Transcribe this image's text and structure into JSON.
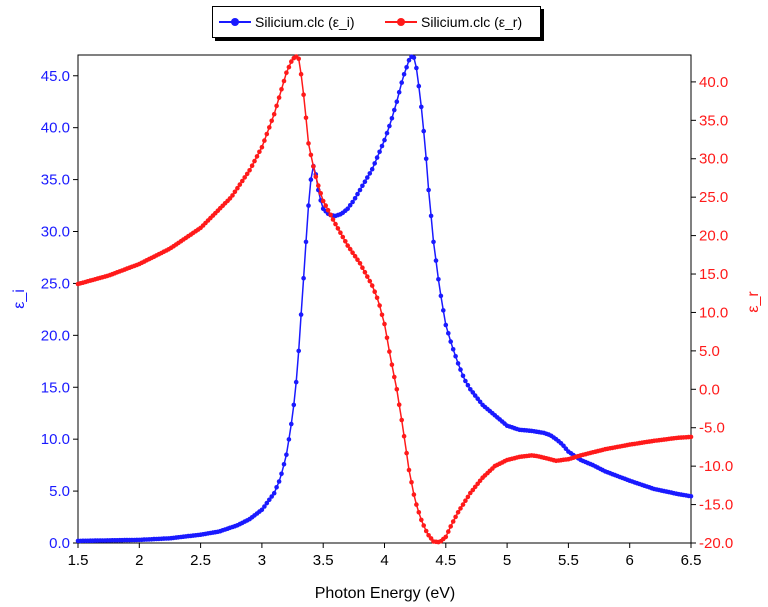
{
  "chart_data": {
    "type": "line",
    "title": "",
    "xlabel": "Photon Energy (eV)",
    "ylabel_left": "ε_i",
    "ylabel_right": "ε_r",
    "xlim": [
      1.5,
      6.5
    ],
    "ylim_left": [
      0,
      47
    ],
    "ylim_right": [
      -20,
      43.5
    ],
    "x_ticks": [
      "1.5",
      "2",
      "2.5",
      "3",
      "3.5",
      "4",
      "4.5",
      "5",
      "5.5",
      "6",
      "6.5"
    ],
    "y_left_ticks": [
      "0.0",
      "5.0",
      "10.0",
      "15.0",
      "20.0",
      "25.0",
      "30.0",
      "35.0",
      "40.0",
      "45.0"
    ],
    "y_right_ticks": [
      "-20.0",
      "-15.0",
      "-10.0",
      "-5.0",
      "0.0",
      "5.0",
      "10.0",
      "15.0",
      "20.0",
      "25.0",
      "30.0",
      "35.0",
      "40.0"
    ],
    "legend_position": "top-center",
    "grid": false,
    "series": [
      {
        "name": "Silicium.clc (ε_i)",
        "axis": "left",
        "color": "#1a1aff",
        "x": [
          1.5,
          1.75,
          2.0,
          2.25,
          2.5,
          2.65,
          2.8,
          2.9,
          3.0,
          3.1,
          3.15,
          3.2,
          3.25,
          3.28,
          3.3,
          3.32,
          3.34,
          3.36,
          3.38,
          3.4,
          3.42,
          3.44,
          3.46,
          3.48,
          3.5,
          3.55,
          3.6,
          3.65,
          3.7,
          3.75,
          3.8,
          3.9,
          4.0,
          4.05,
          4.1,
          4.15,
          4.2,
          4.23,
          4.25,
          4.27,
          4.3,
          4.33,
          4.36,
          4.4,
          4.45,
          4.5,
          4.55,
          4.6,
          4.65,
          4.7,
          4.8,
          4.9,
          5.0,
          5.1,
          5.2,
          5.3,
          5.35,
          5.4,
          5.45,
          5.5,
          5.6,
          5.7,
          5.8,
          6.0,
          6.2,
          6.4,
          6.5
        ],
        "y": [
          0.2,
          0.25,
          0.3,
          0.45,
          0.8,
          1.1,
          1.7,
          2.3,
          3.2,
          4.8,
          6.2,
          8.5,
          12.2,
          15.5,
          18.5,
          22,
          25.5,
          29,
          32.5,
          35,
          36.3,
          35.5,
          34,
          33,
          32.2,
          31.6,
          31.5,
          31.7,
          32.2,
          33,
          34,
          36,
          38.8,
          40.5,
          42.5,
          44.8,
          46.5,
          47,
          46.5,
          45,
          42,
          38.5,
          34,
          29,
          24.5,
          21,
          19,
          17.3,
          15.8,
          14.8,
          13.3,
          12.3,
          11.3,
          10.9,
          10.8,
          10.6,
          10.4,
          10,
          9.5,
          8.8,
          8,
          7.5,
          6.9,
          6.0,
          5.2,
          4.7,
          4.5
        ]
      },
      {
        "name": "Silicium.clc (ε_r)",
        "axis": "right",
        "color": "#ff1a1a",
        "x": [
          1.5,
          1.75,
          2.0,
          2.25,
          2.5,
          2.75,
          2.9,
          3.0,
          3.1,
          3.15,
          3.2,
          3.25,
          3.28,
          3.3,
          3.32,
          3.35,
          3.38,
          3.42,
          3.45,
          3.5,
          3.6,
          3.7,
          3.8,
          3.9,
          3.95,
          4.0,
          4.05,
          4.1,
          4.15,
          4.2,
          4.25,
          4.3,
          4.35,
          4.4,
          4.45,
          4.5,
          4.55,
          4.6,
          4.7,
          4.8,
          4.9,
          5.0,
          5.1,
          5.2,
          5.25,
          5.3,
          5.4,
          5.5,
          5.6,
          5.8,
          6.0,
          6.2,
          6.4,
          6.5
        ],
        "y": [
          13.7,
          14.8,
          16.3,
          18.3,
          21,
          25,
          28.5,
          31.5,
          35.8,
          38.5,
          41.2,
          43.0,
          43.3,
          43.0,
          41,
          37,
          32,
          29,
          27,
          24.5,
          21.5,
          18.7,
          16.4,
          13.5,
          11.5,
          8.5,
          4,
          0,
          -5,
          -10.5,
          -14.5,
          -17,
          -18.8,
          -19.8,
          -19.9,
          -19.2,
          -17.5,
          -16,
          -13.5,
          -11.5,
          -10,
          -9.2,
          -8.8,
          -8.6,
          -8.7,
          -8.9,
          -9.3,
          -9.1,
          -8.6,
          -7.8,
          -7.2,
          -6.7,
          -6.3,
          -6.2
        ]
      }
    ]
  }
}
